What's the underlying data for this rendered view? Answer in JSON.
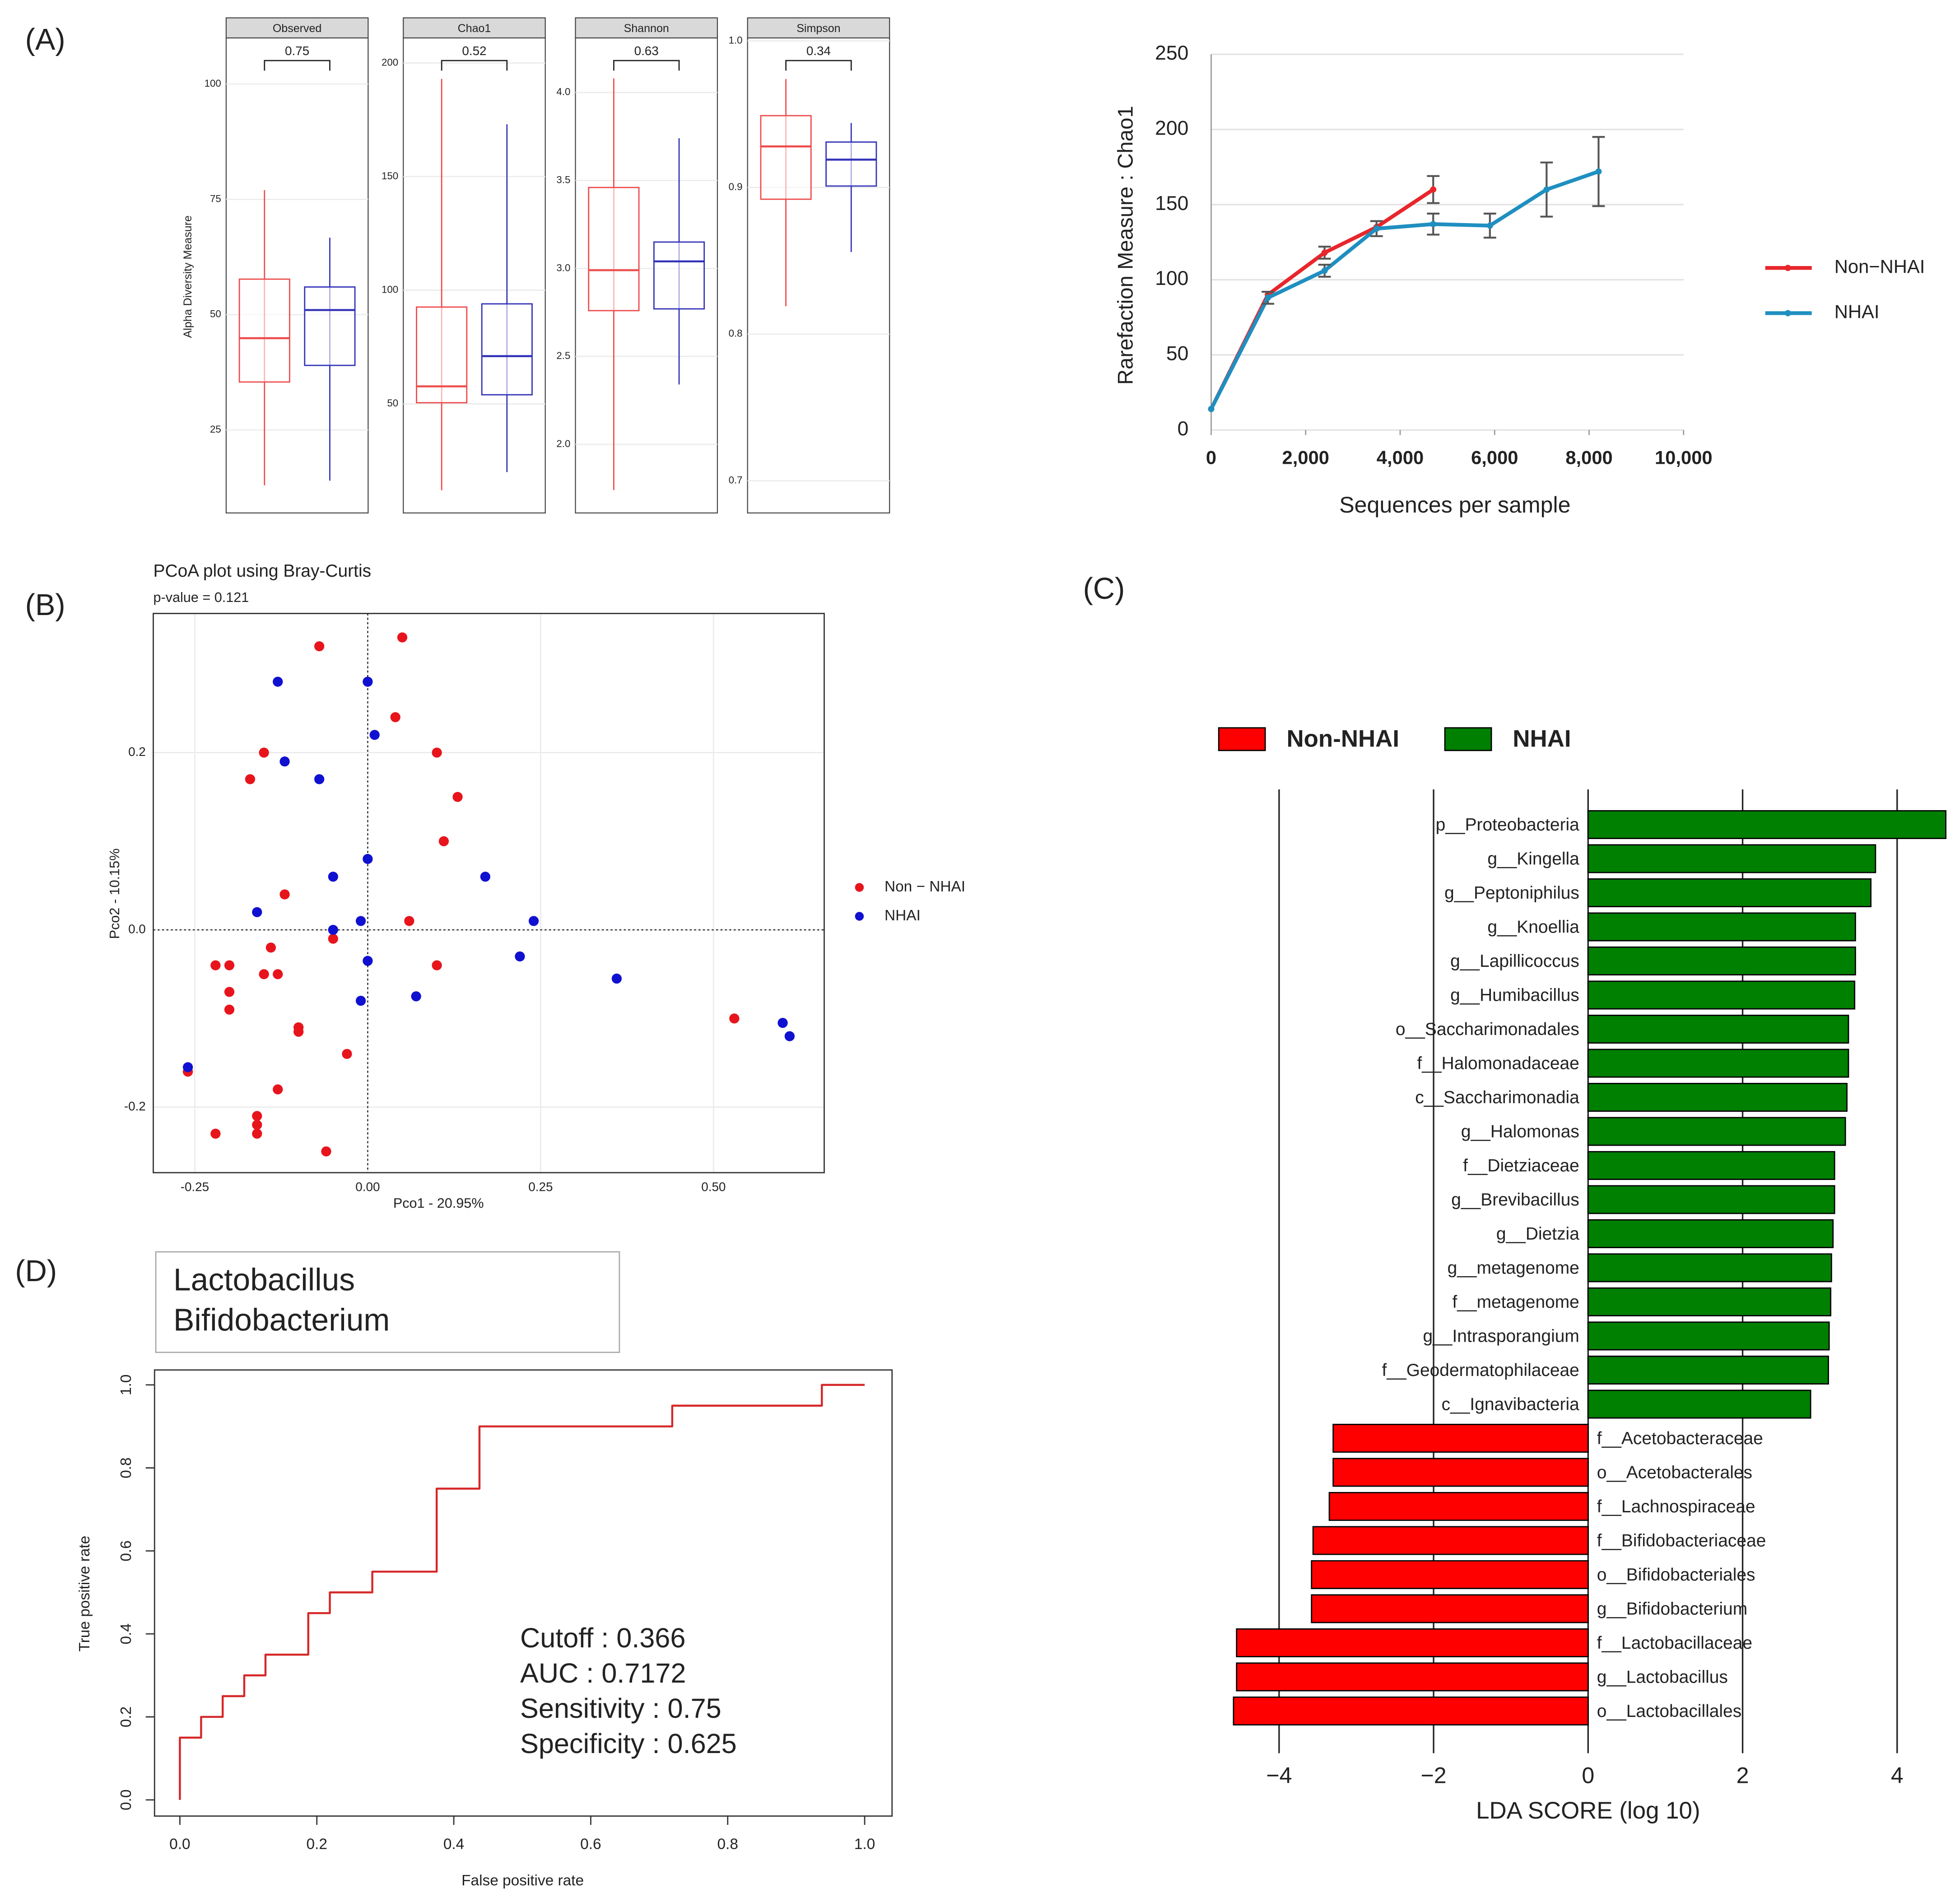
{
  "panel_labels": [
    "(A)",
    "(B)",
    "(C)",
    "(D)"
  ],
  "chart_data": [
    {
      "type": "box",
      "ylabel": "Alpha Diversity Measure",
      "panels": [
        {
          "title": "Observed",
          "annotation": "0.75",
          "ylim": [
            7,
            110
          ],
          "yticks": [
            25,
            50,
            75,
            100
          ],
          "boxes": [
            {
              "color": "#ee4b4b",
              "min": 13,
              "q1": 35.4,
              "median": 44.9,
              "q3": 57.7,
              "max": 77
            },
            {
              "color": "#3232b8",
              "min": 14,
              "q1": 39,
              "median": 51,
              "q3": 56,
              "max": 66.7
            }
          ]
        },
        {
          "title": "Chao1",
          "annotation": "0.52",
          "ylim": [
            2,
            211
          ],
          "yticks": [
            50,
            100,
            150,
            200
          ],
          "boxes": [
            {
              "color": "#ee4b4b",
              "min": 12,
              "q1": 50.5,
              "median": 57.7,
              "q3": 92.6,
              "max": 193
            },
            {
              "color": "#3232b8",
              "min": 20,
              "q1": 54,
              "median": 71,
              "q3": 94,
              "max": 173
            }
          ]
        },
        {
          "title": "Shannon",
          "annotation": "0.63",
          "ylim": [
            1.61,
            4.31
          ],
          "yticks": [
            {
              "value": 2,
              "label": "2.0"
            },
            2.5,
            {
              "value": 3,
              "label": "3.0"
            },
            3.5,
            {
              "value": 4,
              "label": "4.0"
            }
          ],
          "boxes": [
            {
              "color": "#ee4b4b",
              "min": 1.74,
              "q1": 2.76,
              "median": 2.99,
              "q3": 3.46,
              "max": 4.08
            },
            {
              "color": "#3232b8",
              "min": 2.34,
              "q1": 2.77,
              "median": 3.04,
              "q3": 3.15,
              "max": 3.74
            }
          ]
        },
        {
          "title": "Simpson",
          "annotation": "0.34",
          "ylim": [
            0.678,
            1.002
          ],
          "yticks": [
            0.7,
            0.8,
            0.9,
            {
              "value": 1,
              "label": "1.0"
            }
          ],
          "boxes": [
            {
              "color": "#ee4b4b",
              "min": 0.819,
              "q1": 0.892,
              "median": 0.928,
              "q3": 0.949,
              "max": 0.974
            },
            {
              "color": "#3232b8",
              "min": 0.856,
              "q1": 0.901,
              "median": 0.919,
              "q3": 0.931,
              "max": 0.944
            }
          ]
        }
      ]
    },
    {
      "type": "line",
      "ylabel": "Rarefaction Measure : Chao1",
      "xlabel": "Sequences per sample",
      "xlim": [
        0,
        10000
      ],
      "ylim": [
        0,
        250
      ],
      "xticks": [
        0,
        {
          "value": 2000,
          "label": "2,000"
        },
        {
          "value": 4000,
          "label": "4,000"
        },
        {
          "value": 6000,
          "label": "6,000"
        },
        {
          "value": 8000,
          "label": "8,000"
        },
        {
          "value": 10000,
          "label": "10,000"
        }
      ],
      "yticks": [
        0,
        50,
        100,
        150,
        200,
        250
      ],
      "grid": true,
      "series": [
        {
          "name": "Non−NHAI",
          "color": "#e8262b",
          "x": [
            0,
            1200,
            2400,
            3500,
            4700
          ],
          "values": [
            14,
            90,
            118,
            135,
            160
          ],
          "errors": [
            null,
            null,
            4,
            null,
            9
          ]
        },
        {
          "name": "NHAI",
          "color": "#1f8fc0",
          "x": [
            0,
            1200,
            2400,
            3500,
            4700,
            5900,
            7100,
            8200
          ],
          "values": [
            14,
            88,
            106,
            134,
            137,
            136,
            160,
            172
          ],
          "errors": [
            null,
            4,
            4,
            5,
            7,
            8,
            18,
            23
          ]
        }
      ]
    },
    {
      "type": "scatter",
      "title": "PCoA plot using Bray-Curtis",
      "subtitle": "p-value = 0.121",
      "xlabel": "Pco1 - 20.95%",
      "ylabel": "Pco2 - 10.15%",
      "xlim": [
        -0.31,
        0.66
      ],
      "ylim": [
        -0.274,
        0.357
      ],
      "xticks": [
        -0.25,
        {
          "value": 0,
          "label": "0.00"
        },
        0.25,
        {
          "value": 0.5,
          "label": "0.50"
        }
      ],
      "yticks": [
        -0.2,
        {
          "value": 0,
          "label": "0.0"
        },
        0.2
      ],
      "grid": true,
      "series": [
        {
          "name": "Non − NHAI",
          "color": "#e8141c",
          "x": [
            -0.07,
            0.05,
            0.04,
            -0.15,
            -0.17,
            0.1,
            0.13,
            0.11,
            -0.12,
            0.06,
            -0.05,
            -0.14,
            -0.22,
            -0.2,
            0.1,
            -0.15,
            -0.13,
            -0.2,
            -0.2,
            -0.1,
            -0.1,
            -0.03,
            -0.13,
            -0.26,
            -0.16,
            -0.16,
            -0.16,
            -0.22,
            -0.06,
            0.53
          ],
          "values": [
            0.32,
            0.33,
            0.24,
            0.2,
            0.17,
            0.2,
            0.15,
            0.1,
            0.04,
            0.01,
            -0.01,
            -0.02,
            -0.04,
            -0.04,
            -0.04,
            -0.05,
            -0.05,
            -0.07,
            -0.09,
            -0.11,
            -0.115,
            -0.14,
            -0.18,
            -0.16,
            -0.21,
            -0.22,
            -0.23,
            -0.23,
            -0.25,
            -0.1
          ]
        },
        {
          "name": "NHAI",
          "color": "#1010d0",
          "x": [
            -0.13,
            0,
            0.01,
            -0.12,
            -0.07,
            0,
            0.17,
            -0.05,
            -0.16,
            -0.01,
            -0.05,
            0.24,
            0.22,
            0,
            0.36,
            0.07,
            -0.01,
            -0.26,
            0.6,
            0.61
          ],
          "values": [
            0.28,
            0.28,
            0.22,
            0.19,
            0.17,
            0.08,
            0.06,
            0.06,
            0.02,
            0.01,
            0,
            0.01,
            -0.03,
            -0.035,
            -0.055,
            -0.075,
            -0.08,
            -0.155,
            -0.105,
            -0.12
          ]
        }
      ]
    },
    {
      "type": "barh",
      "xlabel": "LDA SCORE (log 10)",
      "xlim": [
        -4.7,
        4.7
      ],
      "xticks": [
        {
          "value": -4,
          "label": "−4"
        },
        {
          "value": -2,
          "label": "−2"
        },
        0,
        2,
        4
      ],
      "series": [
        {
          "name": "NHAI",
          "color": "#008000",
          "categories": [
            "p__Proteobacteria",
            "g__Kingella",
            "g__Peptoniphilus",
            "g__Knoellia",
            "g__Lapillicoccus",
            "g__Humibacillus",
            "o__Saccharimonadales",
            "f__Halomonadaceae",
            "c__Saccharimonadia",
            "g__Halomonas",
            "f__Dietziaceae",
            "g__Brevibacillus",
            "g__Dietzia",
            "g__metagenome",
            "f__metagenome",
            "g__Intrasporangium",
            "f__Geodermatophilaceae",
            "c__Ignavibacteria"
          ],
          "values": [
            4.63,
            3.72,
            3.66,
            3.46,
            3.46,
            3.45,
            3.37,
            3.37,
            3.35,
            3.33,
            3.19,
            3.19,
            3.17,
            3.15,
            3.14,
            3.12,
            3.11,
            2.88
          ]
        },
        {
          "name": "Non-NHAI",
          "color": "#ff0000",
          "categories": [
            "f__Acetobacteraceae",
            "o__Acetobacterales",
            "f__Lachnospiraceae",
            "f__Bifidobacteriaceae",
            "o__Bifidobacteriales",
            "g__Bifidobacterium",
            "f__Lactobacillaceae",
            "g__Lactobacillus",
            "o__Lactobacillales"
          ],
          "values": [
            -3.3,
            -3.3,
            -3.35,
            -3.56,
            -3.58,
            -3.58,
            -4.55,
            -4.55,
            -4.59
          ]
        }
      ]
    },
    {
      "type": "line",
      "xlabel": "False positive rate",
      "ylabel": "True positive rate",
      "xlim": [
        -0.037,
        1.04
      ],
      "ylim": [
        -0.039,
        1.036
      ],
      "xticks": [
        {
          "value": 0,
          "label": "0.0"
        },
        0.2,
        0.4,
        0.6,
        0.8,
        {
          "value": 1,
          "label": "1.0"
        }
      ],
      "yticks": [
        {
          "value": 0,
          "label": "0.0"
        },
        0.2,
        0.4,
        0.6,
        0.8,
        {
          "value": 1,
          "label": "1.0"
        }
      ],
      "grid": false,
      "legend_box": [
        "Lactobacillus",
        "Bifidobacterium"
      ],
      "annotations": [
        "Cutoff : 0.366",
        "AUC : 0.7172",
        "Sensitivity : 0.75",
        "Specificity : 0.625"
      ],
      "series": [
        {
          "color": "#d62728",
          "x": [
            0,
            0,
            0.031,
            0.031,
            0.0625,
            0.0625,
            0.094,
            0.094,
            0.125,
            0.125,
            0.1875,
            0.1875,
            0.219,
            0.219,
            0.281,
            0.281,
            0.375,
            0.375,
            0.4375,
            0.4375,
            0.719,
            0.719,
            0.9375,
            0.9375,
            1
          ],
          "values": [
            0,
            0.15,
            0.15,
            0.2,
            0.2,
            0.25,
            0.25,
            0.3,
            0.3,
            0.35,
            0.35,
            0.45,
            0.45,
            0.5,
            0.5,
            0.55,
            0.55,
            0.75,
            0.75,
            0.9,
            0.9,
            0.95,
            0.95,
            1,
            1
          ]
        }
      ]
    }
  ]
}
